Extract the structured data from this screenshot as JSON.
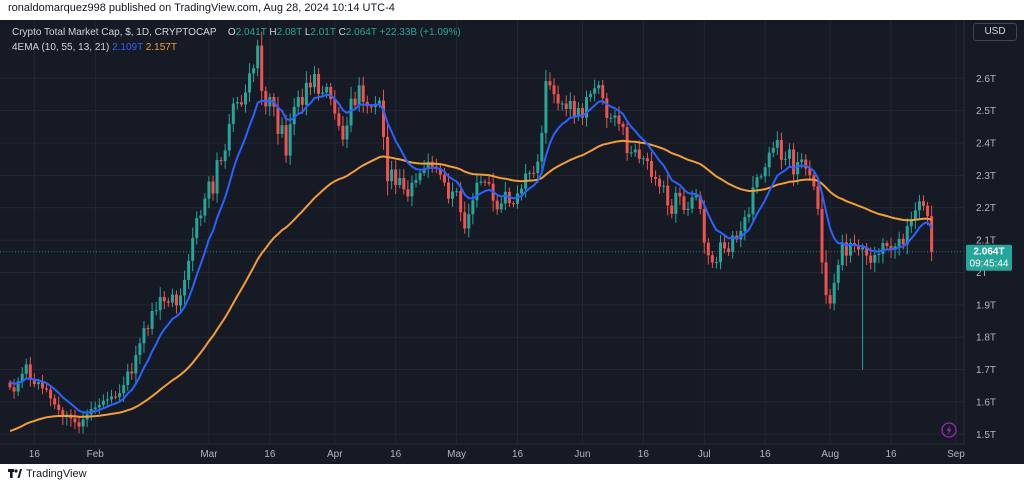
{
  "header": {
    "publisher": "ronaldomarquez998 published on TradingView.com, Aug 28, 2024 10:14 UTC-4"
  },
  "legend": {
    "symbol": "Crypto Total Market Cap, $, 1D, CRYPTOCAP",
    "ohlc": [
      {
        "key": "O",
        "value": "2.041T"
      },
      {
        "key": "H",
        "value": "2.08T"
      },
      {
        "key": "L",
        "value": "2.01T"
      },
      {
        "key": "C",
        "value": "2.064T"
      }
    ],
    "change": "+22.33B (+1.09%)",
    "indicator": "4EMA (10, 55, 13, 21)",
    "indicator_values": [
      "2.109T",
      "2.157T"
    ]
  },
  "currency_button": "USD",
  "price_label": {
    "value": "2.064T",
    "countdown": "09:45:44"
  },
  "footer": {
    "brand": "TradingView"
  },
  "colors": {
    "background": "#161a25",
    "up": "#26a69a",
    "down": "#ef5350",
    "ema_fast": "#2962ff",
    "ema_slow": "#f29d38",
    "price_label": "#26a69a"
  },
  "icons": {
    "flash": "lightning-icon",
    "logo": "tradingview-logo-icon"
  },
  "chart_data": {
    "type": "candlestick",
    "title": "Crypto Total Market Cap, $, 1D, CRYPTOCAP",
    "ylim": [
      1.47,
      2.78
    ],
    "y_scale": "linear",
    "y_ticks": [
      {
        "value": 2.6,
        "label": "2.6T"
      },
      {
        "value": 2.5,
        "label": "2.5T"
      },
      {
        "value": 2.4,
        "label": "2.4T"
      },
      {
        "value": 2.3,
        "label": "2.3T"
      },
      {
        "value": 2.2,
        "label": "2.2T"
      },
      {
        "value": 2.1,
        "label": "2.1T"
      },
      {
        "value": 2.0,
        "label": "2T"
      },
      {
        "value": 1.9,
        "label": "1.9T"
      },
      {
        "value": 1.8,
        "label": "1.8T"
      },
      {
        "value": 1.7,
        "label": "1.7T"
      },
      {
        "value": 1.6,
        "label": "1.6T"
      },
      {
        "value": 1.5,
        "label": "1.5T"
      }
    ],
    "x_ticks": [
      {
        "index": 6,
        "label": "16"
      },
      {
        "index": 21,
        "label": "Feb"
      },
      {
        "index": 49,
        "label": "Mar"
      },
      {
        "index": 64,
        "label": "16"
      },
      {
        "index": 80,
        "label": "Apr"
      },
      {
        "index": 95,
        "label": "16"
      },
      {
        "index": 110,
        "label": "May"
      },
      {
        "index": 125,
        "label": "16"
      },
      {
        "index": 141,
        "label": "Jun"
      },
      {
        "index": 156,
        "label": "16"
      },
      {
        "index": 171,
        "label": "Jul"
      },
      {
        "index": 186,
        "label": "16"
      },
      {
        "index": 202,
        "label": "Aug"
      },
      {
        "index": 217,
        "label": "16"
      },
      {
        "index": 233,
        "label": "Sep"
      }
    ],
    "last_price": 2.064,
    "closes": [
      1.645,
      1.632,
      1.664,
      1.687,
      1.716,
      1.668,
      1.655,
      1.661,
      1.642,
      1.638,
      1.611,
      1.592,
      1.575,
      1.553,
      1.561,
      1.549,
      1.537,
      1.524,
      1.546,
      1.562,
      1.578,
      1.583,
      1.591,
      1.604,
      1.608,
      1.617,
      1.615,
      1.627,
      1.652,
      1.694,
      1.688,
      1.745,
      1.781,
      1.828,
      1.826,
      1.881,
      1.883,
      1.924,
      1.911,
      1.907,
      1.932,
      1.898,
      1.929,
      1.977,
      2.036,
      2.106,
      2.168,
      2.176,
      2.228,
      2.281,
      2.244,
      2.347,
      2.344,
      2.377,
      2.459,
      2.522,
      2.526,
      2.519,
      2.556,
      2.615,
      2.631,
      2.701,
      2.561,
      2.513,
      2.542,
      2.512,
      2.428,
      2.455,
      2.361,
      2.458,
      2.512,
      2.542,
      2.518,
      2.586,
      2.572,
      2.613,
      2.552,
      2.556,
      2.573,
      2.536,
      2.491,
      2.453,
      2.411,
      2.454,
      2.537,
      2.517,
      2.578,
      2.527,
      2.513,
      2.511,
      2.521,
      2.531,
      2.419,
      2.282,
      2.318,
      2.27,
      2.292,
      2.257,
      2.235,
      2.277,
      2.285,
      2.307,
      2.321,
      2.342,
      2.327,
      2.322,
      2.302,
      2.278,
      2.228,
      2.25,
      2.251,
      2.186,
      2.136,
      2.18,
      2.223,
      2.277,
      2.281,
      2.279,
      2.274,
      2.222,
      2.195,
      2.213,
      2.249,
      2.214,
      2.212,
      2.244,
      2.259,
      2.306,
      2.308,
      2.307,
      2.343,
      2.431,
      2.591,
      2.578,
      2.551,
      2.522,
      2.522,
      2.505,
      2.53,
      2.483,
      2.508,
      2.478,
      2.542,
      2.552,
      2.569,
      2.579,
      2.538,
      2.477,
      2.478,
      2.485,
      2.459,
      2.449,
      2.369,
      2.371,
      2.38,
      2.351,
      2.353,
      2.344,
      2.295,
      2.289,
      2.265,
      2.268,
      2.207,
      2.181,
      2.246,
      2.235,
      2.193,
      2.197,
      2.232,
      2.238,
      2.196,
      2.092,
      2.053,
      2.031,
      2.032,
      2.093,
      2.074,
      2.063,
      2.114,
      2.102,
      2.128,
      2.171,
      2.18,
      2.263,
      2.294,
      2.297,
      2.325,
      2.37,
      2.385,
      2.409,
      2.348,
      2.351,
      2.38,
      2.303,
      2.341,
      2.349,
      2.321,
      2.3,
      2.266,
      2.196,
      2.031,
      1.93,
      1.904,
      1.968,
      2.023,
      2.093,
      2.052,
      2.091,
      2.085,
      2.071,
      2.077,
      2.052,
      2.03,
      2.054,
      2.057,
      2.091,
      2.082,
      2.07,
      2.081,
      2.104,
      2.087,
      2.143,
      2.164,
      2.192,
      2.22,
      2.206,
      2.174,
      2.064
    ],
    "ema_fast_label": "2.109T",
    "ema_slow_label": "2.157T"
  }
}
